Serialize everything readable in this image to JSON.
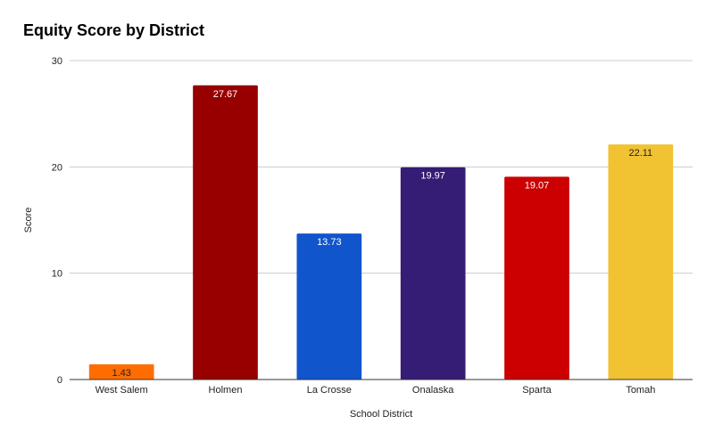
{
  "chart_data": {
    "type": "bar",
    "title": "Equity Score by District",
    "xlabel": "School District",
    "ylabel": "Score",
    "ylim": [
      0,
      30
    ],
    "yticks": [
      "0",
      "10",
      "20",
      "30"
    ],
    "grid": true,
    "legend": "none",
    "categories": [
      "West Salem",
      "Holmen",
      "La Crosse",
      "Onalaska",
      "Sparta",
      "Tomah"
    ],
    "values": [
      1.43,
      27.67,
      13.73,
      19.97,
      19.07,
      22.11
    ],
    "value_labels": [
      "1.43",
      "27.67",
      "13.73",
      "19.97",
      "19.07",
      "22.11"
    ],
    "colors": [
      "#ff6d01",
      "#980000",
      "#1155cc",
      "#351c75",
      "#cc0000",
      "#f1c232"
    ],
    "label_colors": [
      "#222222",
      "#ffffff",
      "#ffffff",
      "#ffffff",
      "#ffffff",
      "#222222"
    ]
  }
}
